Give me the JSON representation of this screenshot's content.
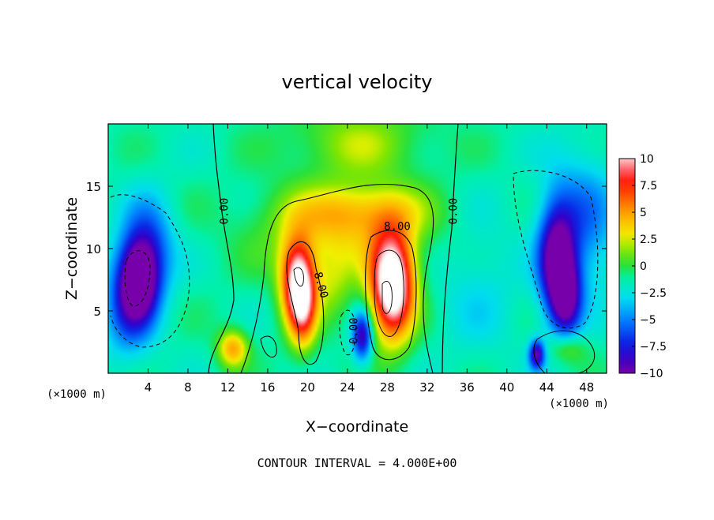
{
  "chart_data": {
    "type": "heatmap",
    "title": "vertical velocity",
    "xlabel": "X−coordinate",
    "ylabel": "Z−coordinate",
    "x_unit_left": "(×1000 m)",
    "x_unit_right": "(×1000 m)",
    "footer": "CONTOUR INTERVAL = 4.000E+00",
    "xlim": [
      0,
      50
    ],
    "ylim": [
      0,
      20
    ],
    "x_ticks": [
      4,
      8,
      12,
      16,
      20,
      24,
      28,
      32,
      36,
      40,
      44,
      48
    ],
    "y_ticks": [
      5,
      10,
      15
    ],
    "colorbar": {
      "range": [
        -10,
        10
      ],
      "ticks": [
        10,
        7.5,
        5,
        2.5,
        0,
        -2.5,
        -5,
        -7.5,
        -10
      ],
      "tick_labels": [
        "10",
        "7.5",
        "5",
        "2.5",
        "0",
        "−2.5",
        "−5",
        "−7.5",
        "−10"
      ]
    },
    "contour_labels": [
      {
        "text": "0.00",
        "x": 12,
        "z": 13
      },
      {
        "text": "8.00",
        "x": 21,
        "z": 7
      },
      {
        "text": "0.00",
        "x": 25,
        "z": 3.4
      },
      {
        "text": "8.00",
        "x": 29,
        "z": 11.5
      },
      {
        "text": "0.00",
        "x": 35,
        "z": 13
      }
    ],
    "features": [
      {
        "x": 28.5,
        "z": 7.0,
        "value": 15,
        "sx": 2.2,
        "sz": 4.2
      },
      {
        "x": 19.0,
        "z": 7.5,
        "value": 11,
        "sx": 1.7,
        "sz": 3.3
      },
      {
        "x": 19.5,
        "z": 5.0,
        "value": 7,
        "sx": 1.4,
        "sz": 3.2
      },
      {
        "x": 25.0,
        "z": 13.0,
        "value": 4,
        "sx": 7.0,
        "sz": 2.2
      },
      {
        "x": 23.0,
        "z": 11.0,
        "value": 3,
        "sx": 8.5,
        "sz": 3.5
      },
      {
        "x": 22.5,
        "z": 7.0,
        "value": 2.5,
        "sx": 2.0,
        "sz": 3.0
      },
      {
        "x": 12.5,
        "z": 2.0,
        "value": 6,
        "sx": 1.5,
        "sz": 1.5
      },
      {
        "x": 3.0,
        "z": 7.5,
        "value": -9,
        "sx": 2.0,
        "sz": 3.2
      },
      {
        "x": 4.0,
        "z": 10.0,
        "value": -5,
        "sx": 2.5,
        "sz": 4.0
      },
      {
        "x": 2.0,
        "z": 5.0,
        "value": -4,
        "sx": 2.5,
        "sz": 4.0
      },
      {
        "x": 45.0,
        "z": 9.0,
        "value": -9,
        "sx": 1.8,
        "sz": 4.5
      },
      {
        "x": 46.0,
        "z": 6.0,
        "value": -7,
        "sx": 1.5,
        "sz": 3.0
      },
      {
        "x": 43.0,
        "z": 1.5,
        "value": -8,
        "sx": 0.8,
        "sz": 1.2
      },
      {
        "x": 47.5,
        "z": 12.0,
        "value": -4,
        "sx": 3.5,
        "sz": 5.5
      },
      {
        "x": 25.5,
        "z": 3.0,
        "value": -8,
        "sx": 1.0,
        "sz": 2.0
      },
      {
        "x": 37.0,
        "z": 7.0,
        "value": -1.5,
        "sx": 4.0,
        "sz": 6.0
      },
      {
        "x": 46.0,
        "z": 2.0,
        "value": 3,
        "sx": 1.8,
        "sz": 1.2
      },
      {
        "x": 25.0,
        "z": 18.5,
        "value": 3,
        "sx": 7.0,
        "sz": 3.0
      }
    ]
  }
}
